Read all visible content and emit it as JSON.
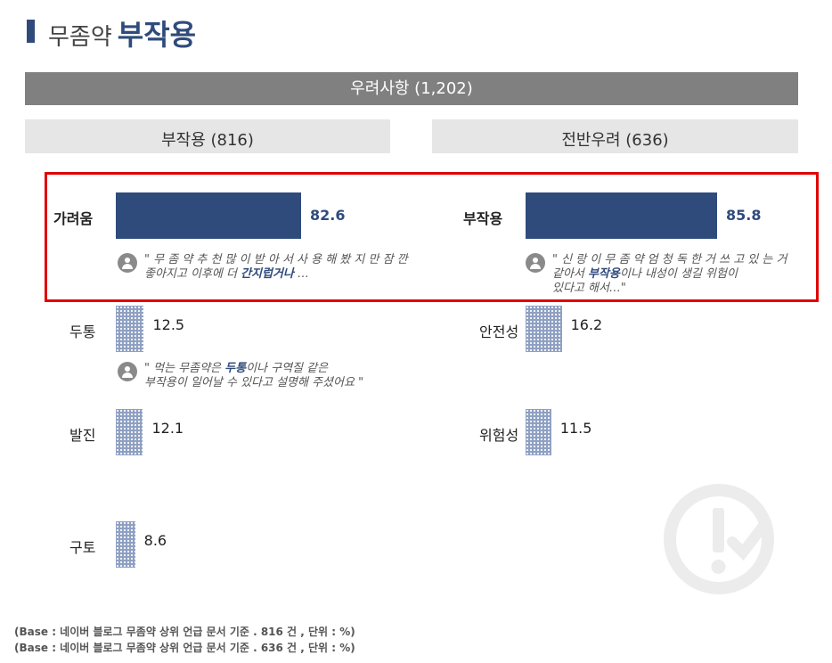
{
  "header": {
    "title_prefix": "무좀약",
    "title_main": "부작용"
  },
  "banner": {
    "label": "우려사항 (1,202)"
  },
  "panels": [
    {
      "heading": "부작용 (816)"
    },
    {
      "heading": "전반우려 (636)"
    }
  ],
  "quotes": [
    {
      "pre": "\" 무 좀 약 추 천 많 이 받 아 서 사 용 해 봤 지 만 잠 깐",
      "line2_pre": "좋아지고 이후에 더 ",
      "kw": "간지럽거나",
      "post": " …"
    },
    {
      "pre": "\" 신 랑 이 무 좀 약 엄 청 독 한 거 쓰 고 있 는 거",
      "line2_pre": "같아서 ",
      "kw": "부작용",
      "post": "이나 내성이 생길 위험이",
      "line3": "있다고 해서…\""
    },
    {
      "pre": "\" 먹는 무좀약은 ",
      "kw": "두통",
      "post": "이나 구역질 같은",
      "line2_pre": "부작용이 일어날 수 있다고 설명해 주셨어요 \""
    }
  ],
  "chart_data": [
    {
      "type": "bar",
      "orientation": "horizontal",
      "title": "부작용 (816)",
      "categories": [
        "가려움",
        "두통",
        "발진",
        "구토"
      ],
      "values": [
        82.6,
        12.5,
        12.1,
        8.6
      ],
      "unit": "%"
    },
    {
      "type": "bar",
      "orientation": "horizontal",
      "title": "전반우려 (636)",
      "categories": [
        "부작용",
        "안전성",
        "위험성"
      ],
      "values": [
        85.8,
        16.2,
        11.5
      ],
      "unit": "%"
    }
  ],
  "footer": {
    "notes": [
      "(Base : 네이버 블로그 무좀약 상위 언급 문서 기준 . 816 건 , 단위 : %)",
      "(Base : 네이버 블로그 무좀약 상위 언급 문서 기준 . 636 건 , 단위 : %)"
    ]
  },
  "colors": {
    "accent": "#2f4b7c",
    "banner": "#808080",
    "subhead": "#e6e6e6",
    "highlight": "#e00000"
  },
  "icons": {
    "quote_avatar": "user-avatar-icon",
    "watermark": "alert-check-icon"
  }
}
